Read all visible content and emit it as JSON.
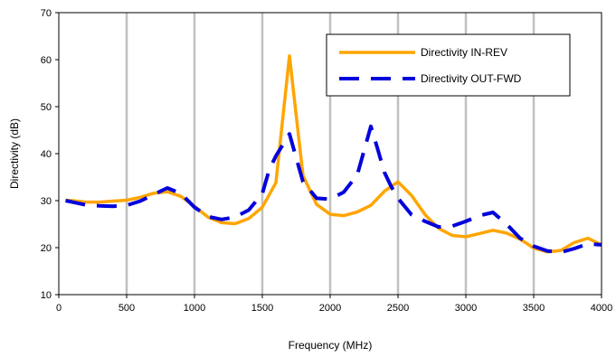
{
  "chart_data": {
    "type": "line",
    "title": "",
    "xlabel": "Frequency (MHz)",
    "ylabel": "Directivity (dB)",
    "xlim": [
      0,
      4000
    ],
    "ylim": [
      10,
      70
    ],
    "x_ticks": [
      0,
      500,
      1000,
      1500,
      2000,
      2500,
      3000,
      3500,
      4000
    ],
    "y_ticks": [
      10,
      20,
      30,
      40,
      50,
      60,
      70
    ],
    "grid": "vertical",
    "legend_position": "top-right",
    "series": [
      {
        "name": "Directivity IN-REV",
        "color": "#ffa500",
        "style": "solid",
        "x": [
          50,
          100,
          200,
          300,
          400,
          500,
          600,
          700,
          800,
          900,
          1000,
          1100,
          1200,
          1300,
          1400,
          1500,
          1600,
          1700,
          1800,
          1900,
          2000,
          2100,
          2200,
          2300,
          2400,
          2500,
          2600,
          2700,
          2800,
          2900,
          3000,
          3100,
          3200,
          3300,
          3400,
          3500,
          3600,
          3700,
          3800,
          3900,
          4000
        ],
        "values": [
          30.1,
          30.0,
          29.7,
          29.7,
          29.9,
          30.1,
          30.7,
          31.6,
          31.9,
          30.9,
          28.8,
          26.5,
          25.3,
          25.1,
          26.2,
          28.6,
          33.8,
          60.8,
          35.3,
          29.2,
          27.1,
          26.8,
          27.6,
          29.0,
          32.0,
          34.0,
          31.1,
          27.0,
          24.1,
          22.6,
          22.3,
          23.0,
          23.7,
          23.1,
          21.8,
          19.9,
          19.1,
          19.4,
          21.1,
          22.0,
          20.6
        ]
      },
      {
        "name": "Directivity OUT-FWD",
        "color": "#0000dd",
        "style": "dashed",
        "x": [
          50,
          100,
          200,
          300,
          400,
          500,
          600,
          700,
          800,
          900,
          1000,
          1100,
          1200,
          1300,
          1400,
          1500,
          1550,
          1600,
          1700,
          1800,
          1900,
          2000,
          2100,
          2200,
          2300,
          2350,
          2400,
          2450,
          2500,
          2600,
          2700,
          2800,
          2900,
          3000,
          3100,
          3200,
          3300,
          3400,
          3500,
          3600,
          3700,
          3800,
          3900,
          4000
        ],
        "values": [
          30.0,
          29.7,
          29.1,
          28.9,
          28.8,
          29.0,
          29.9,
          31.3,
          32.7,
          31.5,
          28.6,
          26.6,
          26.0,
          26.5,
          28.0,
          31.5,
          36.5,
          39.5,
          44.2,
          34.0,
          30.5,
          30.3,
          31.8,
          35.5,
          45.8,
          41.0,
          36.0,
          33.0,
          30.5,
          27.0,
          25.6,
          24.4,
          24.6,
          25.6,
          26.8,
          27.5,
          25.0,
          22.0,
          20.3,
          19.3,
          19.0,
          19.8,
          20.8,
          20.6
        ]
      }
    ]
  }
}
